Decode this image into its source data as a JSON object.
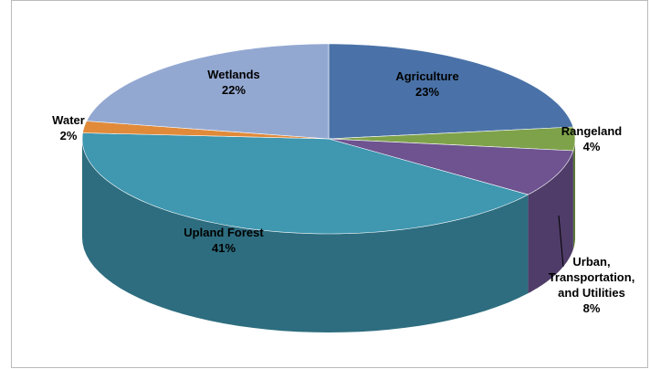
{
  "chart_data": {
    "type": "pie3d",
    "categories": [
      "Agriculture",
      "Rangeland",
      "Urban, Transportation, and Utilities",
      "Upland Forest",
      "Water",
      "Wetlands"
    ],
    "values": [
      23,
      4,
      8,
      41,
      2,
      22
    ],
    "value_labels": [
      "23%",
      "4%",
      "8%",
      "41%",
      "2%",
      "22%"
    ],
    "colors": [
      "#4a72a8",
      "#7ea24a",
      "#6e5390",
      "#3f97b0",
      "#e08a3a",
      "#93a8d1"
    ]
  }
}
